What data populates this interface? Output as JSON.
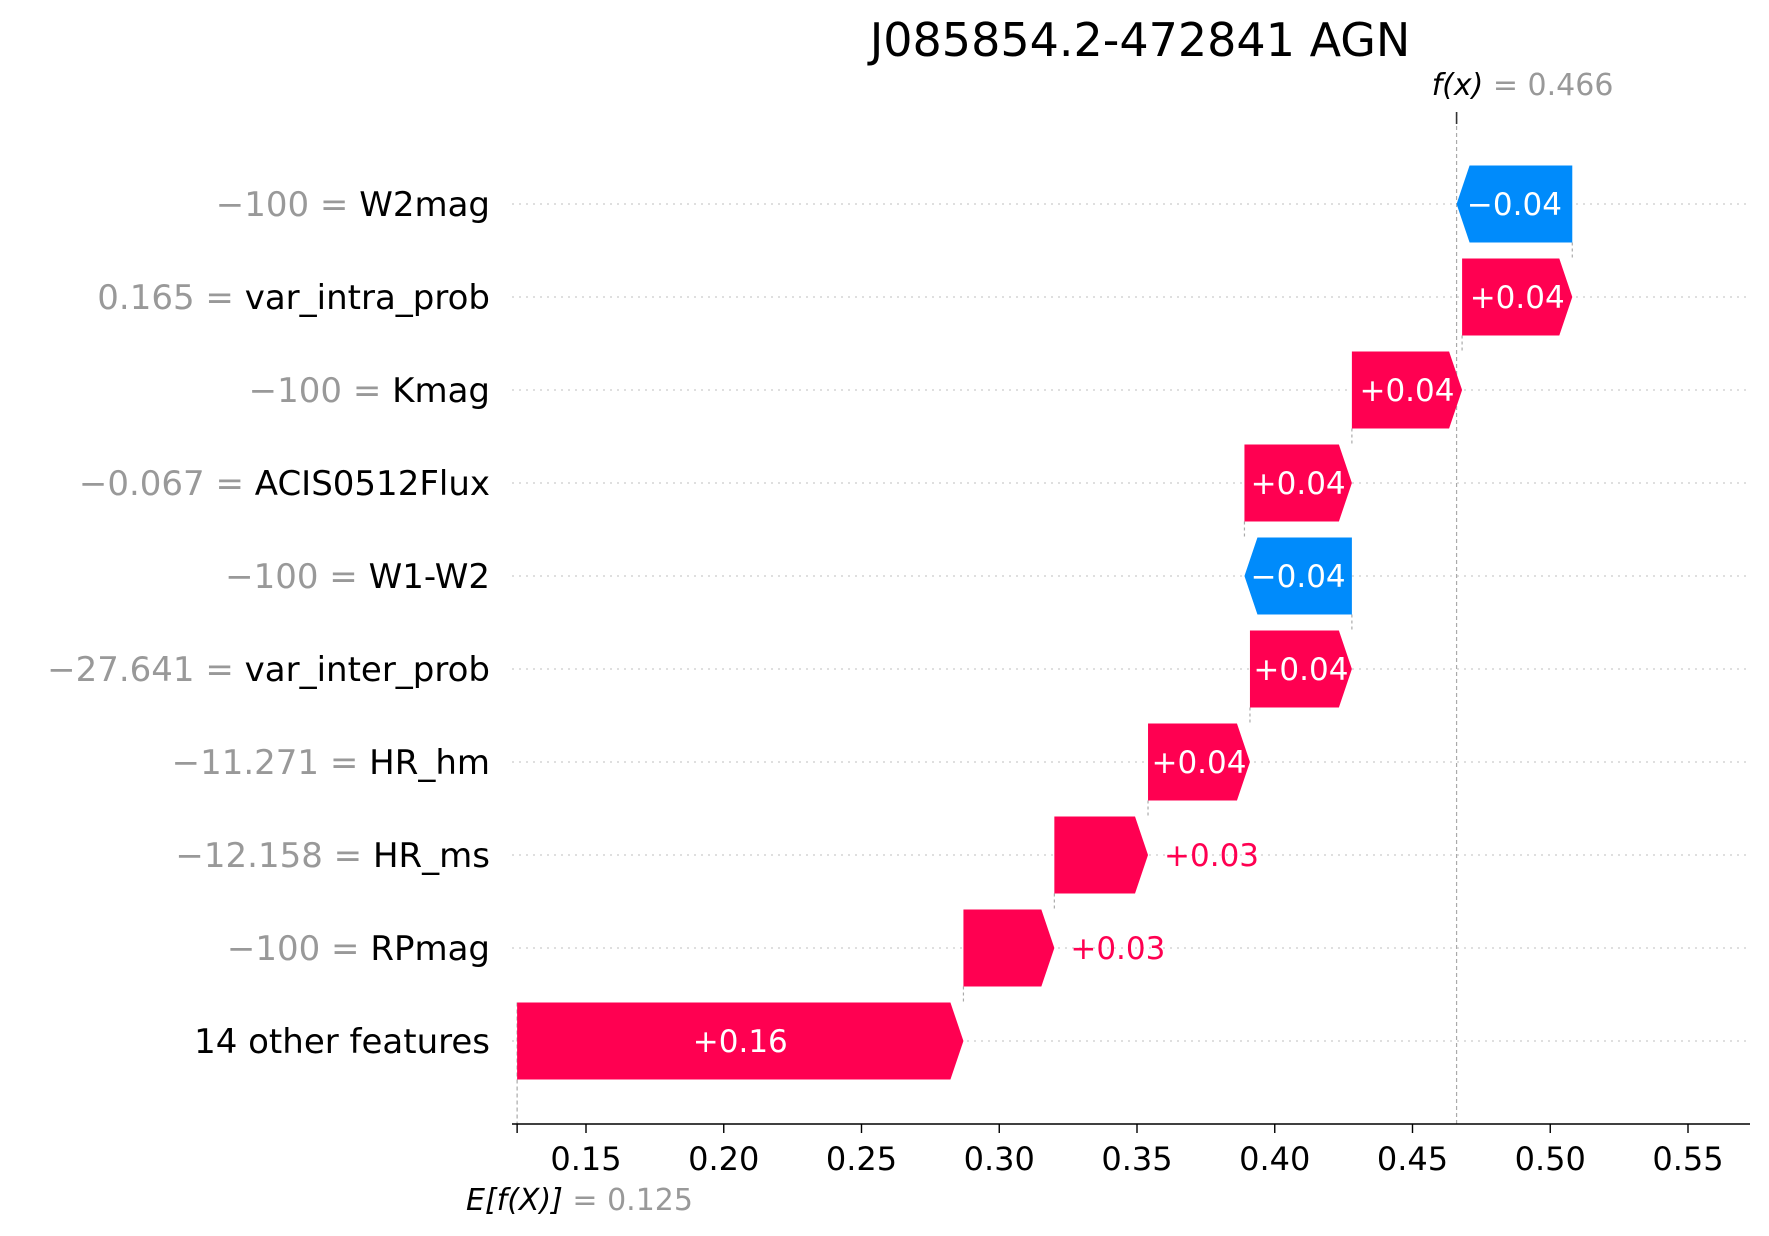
{
  "chart_data": {
    "type": "waterfall",
    "title": "J085854.2-472841 AGN",
    "base_value": 0.125,
    "final_value": 0.466,
    "base_label": "E[f(X)]",
    "base_value_text": "= 0.125",
    "final_label": "f(x)",
    "final_value_text": "= 0.466",
    "xlim": [
      0.125,
      0.55
    ],
    "xticks": [
      0.15,
      0.2,
      0.25,
      0.3,
      0.35,
      0.4,
      0.45,
      0.5,
      0.55
    ],
    "xtick_labels": [
      "0.15",
      "0.20",
      "0.25",
      "0.30",
      "0.35",
      "0.40",
      "0.45",
      "0.50",
      "0.55"
    ],
    "features": [
      {
        "name": "W2mag",
        "value": "−100",
        "start": 0.508,
        "end": 0.466,
        "label": "−0.04"
      },
      {
        "name": "var_intra_prob",
        "value": "0.165",
        "start": 0.468,
        "end": 0.508,
        "label": "+0.04"
      },
      {
        "name": "Kmag",
        "value": "−100",
        "start": 0.428,
        "end": 0.468,
        "label": "+0.04"
      },
      {
        "name": "ACIS0512Flux",
        "value": "−0.067",
        "start": 0.389,
        "end": 0.428,
        "label": "+0.04"
      },
      {
        "name": "W1-W2",
        "value": "−100",
        "start": 0.428,
        "end": 0.389,
        "label": "−0.04"
      },
      {
        "name": "var_inter_prob",
        "value": "−27.641",
        "start": 0.391,
        "end": 0.428,
        "label": "+0.04"
      },
      {
        "name": "HR_hm",
        "value": "−11.271",
        "start": 0.354,
        "end": 0.391,
        "label": "+0.04"
      },
      {
        "name": "HR_ms",
        "value": "−12.158",
        "start": 0.32,
        "end": 0.354,
        "label": "+0.03"
      },
      {
        "name": "RPmag",
        "value": "−100",
        "start": 0.287,
        "end": 0.32,
        "label": "+0.03"
      },
      {
        "name": "14 other features",
        "value": "",
        "start": 0.125,
        "end": 0.287,
        "label": "+0.16"
      }
    ],
    "colors": {
      "positive": "#ff0051",
      "negative": "#008bfb",
      "value_text": "#999999",
      "reference_line": "#aaaaaa",
      "grid": "#cccccc"
    },
    "grid": "dotted horizontal per row"
  }
}
